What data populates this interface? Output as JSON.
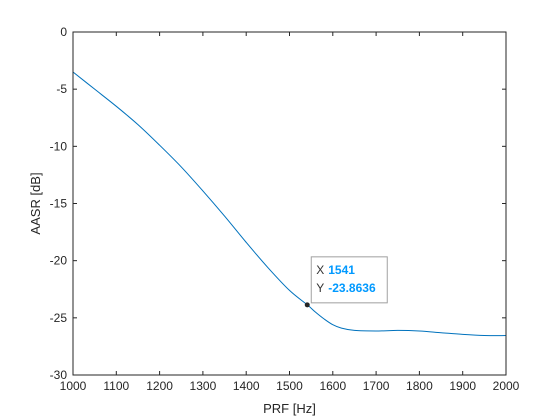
{
  "chart_data": {
    "type": "line",
    "title": "",
    "xlabel": "PRF [Hz]",
    "ylabel": "AASR [dB]",
    "xlim": [
      1000,
      2000
    ],
    "ylim": [
      -30,
      0
    ],
    "xticks": [
      1000,
      1100,
      1200,
      1300,
      1400,
      1500,
      1600,
      1700,
      1800,
      1900,
      2000
    ],
    "yticks": [
      0,
      -5,
      -10,
      -15,
      -20,
      -25,
      -30
    ],
    "grid": false,
    "line_color": "#0072bd",
    "series": [
      {
        "x": [
          1000,
          1050,
          1100,
          1150,
          1200,
          1250,
          1300,
          1350,
          1400,
          1450,
          1500,
          1541,
          1560,
          1580,
          1600,
          1620,
          1650,
          1700,
          1750,
          1800,
          1850,
          1900,
          1950,
          2000
        ],
        "values": [
          -3.5,
          -5.0,
          -6.5,
          -8.1,
          -9.9,
          -11.8,
          -13.9,
          -16.1,
          -18.4,
          -20.6,
          -22.6,
          -23.86,
          -24.5,
          -25.1,
          -25.6,
          -25.9,
          -26.1,
          -26.15,
          -26.1,
          -26.15,
          -26.3,
          -26.45,
          -26.55,
          -26.55
        ]
      }
    ],
    "datatip": {
      "x_key": "X",
      "x_value": "1541",
      "y_key": "Y",
      "y_value": "-23.8636",
      "point": [
        1541,
        -23.8636
      ],
      "value_color": "#0099ff"
    }
  }
}
